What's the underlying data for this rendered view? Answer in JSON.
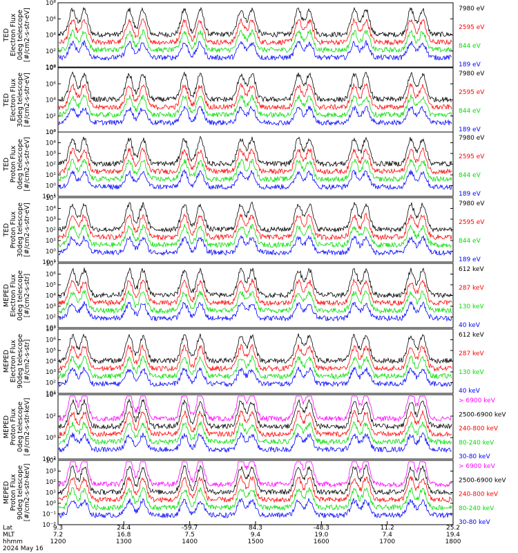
{
  "colors": {
    "c0": "#000000",
    "c1": "#ff0000",
    "c2": "#00dd00",
    "c3": "#0000ff",
    "c4": "#ff00ff"
  },
  "chart_data": [
    {
      "type": "line",
      "ylabel": [
        "TED",
        "Electron Flux",
        "0deg telescope",
        "[#/cm2-s-str-eV]"
      ],
      "yscale": "log",
      "ylim": [
        1,
        100000000
      ],
      "ticks": [
        "10⁰",
        "10²",
        "10⁴",
        "10⁶",
        "10⁸"
      ],
      "series": [
        {
          "name": "7980 eV",
          "color": "c0"
        },
        {
          "name": "2595 eV",
          "color": "c1"
        },
        {
          "name": "844 eV",
          "color": "c2"
        },
        {
          "name": "189 eV",
          "color": "c3"
        }
      ]
    },
    {
      "type": "line",
      "ylabel": [
        "TED",
        "Electron Flux",
        "30deg telescope",
        "[#/cm2-s-str-eV]"
      ],
      "yscale": "log",
      "ylim": [
        1,
        100000000
      ],
      "ticks": [
        "10⁰",
        "10²",
        "10⁴",
        "10⁶",
        "10⁸"
      ],
      "series": [
        {
          "name": "7980 eV",
          "color": "c0"
        },
        {
          "name": "2595 eV",
          "color": "c1"
        },
        {
          "name": "844 eV",
          "color": "c2"
        },
        {
          "name": "189 eV",
          "color": "c3"
        }
      ]
    },
    {
      "type": "line",
      "ylabel": [
        "TED",
        "Proton Flux",
        "0deg telescope",
        "[#/cm2-s-str-eV]"
      ],
      "yscale": "log",
      "ylim": [
        0.1,
        100000
      ],
      "ticks": [
        "10⁻¹",
        "10⁰",
        "10¹",
        "10²",
        "10³",
        "10⁴",
        "10⁵"
      ],
      "series": [
        {
          "name": "7980 eV",
          "color": "c0"
        },
        {
          "name": "2595 eV",
          "color": "c1"
        },
        {
          "name": "844 eV",
          "color": "c2"
        },
        {
          "name": "189 eV",
          "color": "c3"
        }
      ]
    },
    {
      "type": "line",
      "ylabel": [
        "TED",
        "Proton Flux",
        "30deg telescope",
        "[#/cm2-s-str-eV]"
      ],
      "yscale": "log",
      "ylim": [
        0.1,
        100000
      ],
      "ticks": [
        "10⁻¹",
        "10⁰",
        "10¹",
        "10²",
        "10³",
        "10⁴",
        "10⁵"
      ],
      "series": [
        {
          "name": "7980 eV",
          "color": "c0"
        },
        {
          "name": "2595 eV",
          "color": "c1"
        },
        {
          "name": "844 eV",
          "color": "c2"
        },
        {
          "name": "189 eV",
          "color": "c3"
        }
      ]
    },
    {
      "type": "line",
      "ylabel": [
        "MEPED",
        "Electron Flux",
        "0deg telescope",
        "[#/cm2-s-str]"
      ],
      "yscale": "log",
      "ylim": [
        10,
        10000000
      ],
      "ticks": [
        "10¹",
        "10²",
        "10³",
        "10⁴",
        "10⁵",
        "10⁶",
        "10⁷"
      ],
      "series": [
        {
          "name": "612 keV",
          "color": "c0"
        },
        {
          "name": "287 keV",
          "color": "c1"
        },
        {
          "name": "130 keV",
          "color": "c2"
        },
        {
          "name": "40 keV",
          "color": "c3"
        }
      ]
    },
    {
      "type": "line",
      "ylabel": [
        "MEPED",
        "Electron Flux",
        "90deg telescope",
        "[#/cm2-s-str]"
      ],
      "yscale": "log",
      "ylim": [
        10,
        10000000
      ],
      "ticks": [
        "10¹",
        "10²",
        "10³",
        "10⁴",
        "10⁵",
        "10⁶",
        "10⁷"
      ],
      "series": [
        {
          "name": "612 keV",
          "color": "c0"
        },
        {
          "name": "287 keV",
          "color": "c1"
        },
        {
          "name": "130 keV",
          "color": "c2"
        },
        {
          "name": "40 keV",
          "color": "c3"
        }
      ]
    },
    {
      "type": "line",
      "ylabel": [
        "MEPED",
        "Proton Flux",
        "0deg telescope",
        "[#/cm2-s-str-keV]"
      ],
      "yscale": "log",
      "ylim": [
        0.01,
        100000
      ],
      "ticks": [
        "10⁻²",
        "10⁰",
        "10²",
        "10⁴"
      ],
      "series": [
        {
          "name": "> 6900 keV",
          "color": "c4"
        },
        {
          "name": "2500-6900 keV",
          "color": "c0"
        },
        {
          "name": "240-800 keV",
          "color": "c1"
        },
        {
          "name": "80-240 keV",
          "color": "c2"
        },
        {
          "name": "30-80 keV",
          "color": "c3"
        }
      ]
    },
    {
      "type": "line",
      "ylabel": [
        "MEPED",
        "Proton Flux",
        "90deg telescope",
        "[#/cm2-s-str-keV]"
      ],
      "yscale": "log",
      "ylim": [
        0.01,
        100000
      ],
      "ticks": [
        "10⁻²",
        "10⁻¹",
        "10⁰",
        "10¹",
        "10²",
        "10³",
        "10⁴"
      ],
      "series": [
        {
          "name": "> 6900 keV",
          "color": "c4"
        },
        {
          "name": "2500-6900 keV",
          "color": "c0"
        },
        {
          "name": "240-800 keV",
          "color": "c1"
        },
        {
          "name": "80-240 keV",
          "color": "c2"
        },
        {
          "name": "30-80 keV",
          "color": "c3"
        }
      ]
    }
  ],
  "xaxis": {
    "row_labels": [
      "Lat",
      "MLT",
      "hhmm",
      "2024 May 16"
    ],
    "columns": [
      {
        "lat": "9.3",
        "mlt": "7.2",
        "hhmm": "1200"
      },
      {
        "lat": "24.4",
        "mlt": "16.8",
        "hhmm": "1300"
      },
      {
        "lat": "-59.7",
        "mlt": "7.5",
        "hhmm": "1400"
      },
      {
        "lat": "84.3",
        "mlt": "9.4",
        "hhmm": "1500"
      },
      {
        "lat": "-48.3",
        "mlt": "19.0",
        "hhmm": "1600"
      },
      {
        "lat": "11.2",
        "mlt": "7.4",
        "hhmm": "1700"
      },
      {
        "lat": "25.2",
        "mlt": "19.4",
        "hhmm": "1800"
      }
    ]
  }
}
